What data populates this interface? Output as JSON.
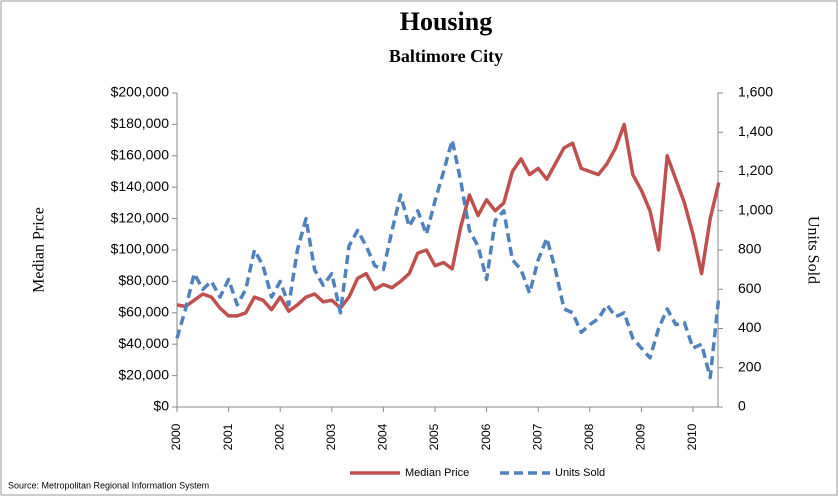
{
  "chart_data": {
    "type": "line",
    "title": "Housing",
    "subtitle": "Baltimore City",
    "ylabel": "Median Price",
    "y2label": "Units Sold",
    "source": "Source: Metropolitan Regional Information System",
    "categories": [
      "2000",
      null,
      null,
      null,
      null,
      null,
      "2001",
      null,
      null,
      null,
      null,
      null,
      "2002",
      null,
      null,
      null,
      null,
      null,
      "2003",
      null,
      null,
      null,
      null,
      null,
      "2004",
      null,
      null,
      null,
      null,
      null,
      "2005",
      null,
      null,
      null,
      null,
      null,
      "2006",
      null,
      null,
      null,
      null,
      null,
      "2007",
      null,
      null,
      null,
      null,
      null,
      "2008",
      null,
      null,
      null,
      null,
      null,
      "2009",
      null,
      null,
      null,
      null,
      null,
      "2010",
      null,
      null,
      null
    ],
    "series": [
      {
        "name": "Median Price",
        "color": "#c0504d",
        "dashed": false,
        "axis": "y",
        "values": [
          65000,
          64000,
          68000,
          72000,
          70000,
          63000,
          58000,
          58000,
          60000,
          70000,
          68000,
          62000,
          70000,
          61000,
          65000,
          70000,
          72000,
          67000,
          68000,
          63000,
          70000,
          82000,
          85000,
          75000,
          78000,
          76000,
          80000,
          85000,
          98000,
          100000,
          90000,
          92000,
          88000,
          115000,
          135000,
          122000,
          132000,
          125000,
          130000,
          150000,
          158000,
          148000,
          152000,
          145000,
          155000,
          165000,
          168000,
          152000,
          150000,
          148000,
          155000,
          165000,
          180000,
          148000,
          138000,
          125000,
          100000,
          160000,
          145000,
          130000,
          110000,
          85000,
          120000,
          143000
        ]
      },
      {
        "name": "Units Sold",
        "color": "#4f81bd",
        "dashed": true,
        "axis": "y2",
        "values": [
          350,
          500,
          680,
          600,
          640,
          560,
          650,
          520,
          600,
          800,
          720,
          560,
          640,
          520,
          800,
          960,
          700,
          620,
          680,
          480,
          820,
          900,
          820,
          720,
          700,
          900,
          1080,
          920,
          1000,
          880,
          1050,
          1200,
          1360,
          1150,
          900,
          820,
          650,
          950,
          1000,
          750,
          700,
          580,
          750,
          860,
          700,
          500,
          480,
          380,
          420,
          450,
          520,
          460,
          480,
          350,
          300,
          250,
          400,
          500,
          420,
          430,
          300,
          320,
          150,
          560
        ]
      }
    ],
    "ylim": [
      0,
      200000
    ],
    "yticks": [
      {
        "value": 0,
        "label": "$0"
      },
      {
        "value": 20000,
        "label": "$20,000"
      },
      {
        "value": 40000,
        "label": "$40,000"
      },
      {
        "value": 60000,
        "label": "$60,000"
      },
      {
        "value": 80000,
        "label": "$80,000"
      },
      {
        "value": 100000,
        "label": "$100,000"
      },
      {
        "value": 120000,
        "label": "$120,000"
      },
      {
        "value": 140000,
        "label": "$140,000"
      },
      {
        "value": 160000,
        "label": "$160,000"
      },
      {
        "value": 180000,
        "label": "$180,000"
      },
      {
        "value": 200000,
        "label": "$200,000"
      }
    ],
    "y2lim": [
      0,
      1600
    ],
    "y2ticks": [
      0,
      200,
      400,
      600,
      800,
      {
        "value": 1000,
        "label": "1,000"
      },
      {
        "value": 1200,
        "label": "1,200"
      },
      {
        "value": 1400,
        "label": "1,400"
      },
      {
        "value": 1600,
        "label": "1,600"
      }
    ],
    "grid": false,
    "legend": "bottom"
  }
}
